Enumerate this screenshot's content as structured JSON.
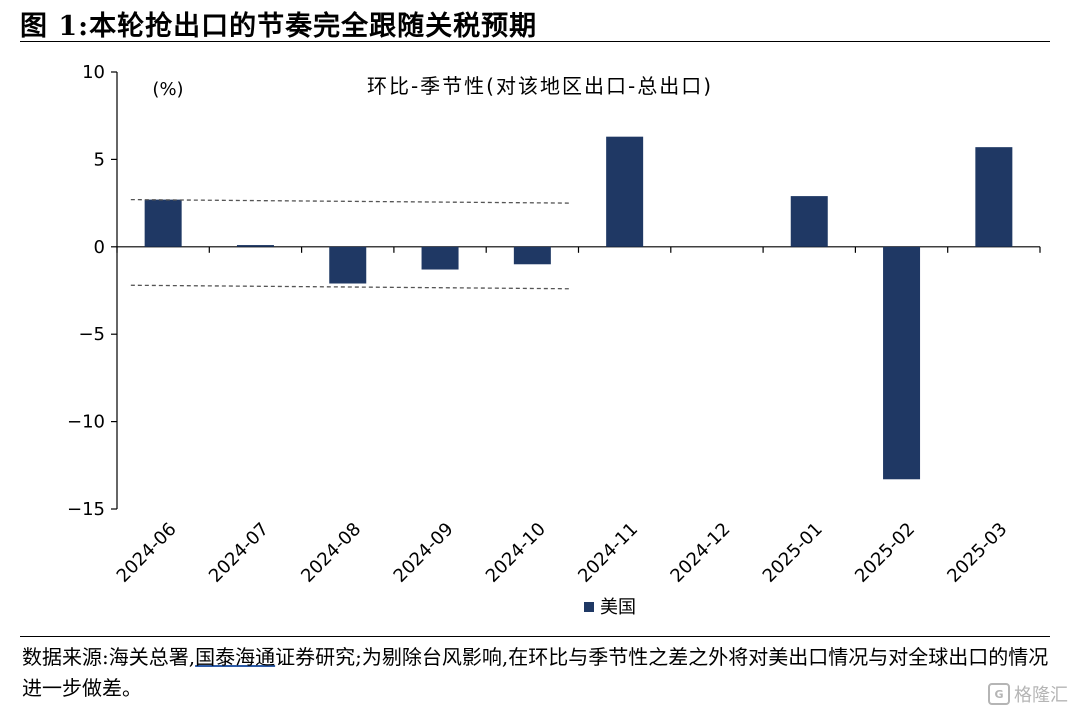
{
  "figure": {
    "title": "图 1:本轮抢出口的节奏完全跟随关税预期"
  },
  "chart_data": {
    "type": "bar",
    "title": "环比-季节性(对该地区出口-总出口)",
    "unit_label": "(%)",
    "categories": [
      "2024-06",
      "2024-07",
      "2024-08",
      "2024-09",
      "2024-10",
      "2024-11",
      "2024-12",
      "2025-01",
      "2025-02",
      "2025-03"
    ],
    "series": [
      {
        "name": "美国",
        "color": "#1f3864",
        "values": [
          2.7,
          0.1,
          -2.1,
          -1.3,
          -1.0,
          6.3,
          0.0,
          2.9,
          -13.3,
          5.7
        ]
      }
    ],
    "ylim": [
      -15,
      10
    ],
    "yticks": [
      "10",
      "5",
      "0",
      "−5",
      "−10",
      "−15"
    ],
    "reference_lines": [
      {
        "style": "dashed",
        "from_value": 2.7,
        "to_value": 2.5,
        "from_category": "2024-06",
        "to_category": "2024-10"
      },
      {
        "style": "dashed",
        "from_value": -2.2,
        "to_value": -2.4,
        "from_category": "2024-06",
        "to_category": "2024-10"
      }
    ],
    "legend_position": "bottom-center",
    "grid": false
  },
  "source": {
    "label": "数据来源:",
    "text_a": "海关总署,",
    "text_b": "国泰海通",
    "text_c": "证券研究;为剔除台风影响,在环比与季节性之差之外将对美出口情况与对全球出口的情况进一步做差。"
  },
  "watermark": {
    "badge": "G",
    "text": "格隆汇"
  }
}
